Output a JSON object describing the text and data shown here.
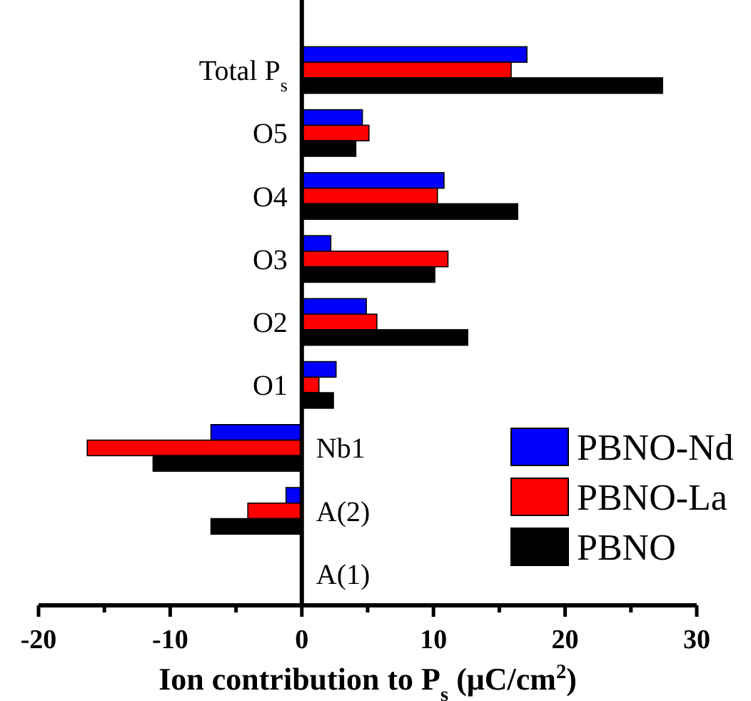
{
  "chart_data": {
    "type": "bar",
    "orientation": "horizontal",
    "xlabel": "Ion contribution to P$_{s}$ (μC/cm$^{2}$)",
    "categories": [
      "Total P$_{s}$",
      "O5",
      "O4",
      "O3",
      "O2",
      "O1",
      "Nb1",
      "A(2)",
      "A(1)"
    ],
    "series": [
      {
        "name": "PBNO-Nd",
        "color": "#0000ff",
        "values": [
          17.1,
          4.6,
          10.8,
          2.2,
          4.9,
          2.6,
          -6.9,
          -1.2,
          0
        ]
      },
      {
        "name": "PBNO-La",
        "color": "#ff0000",
        "values": [
          15.9,
          5.1,
          10.3,
          11.1,
          5.7,
          1.3,
          -16.3,
          -4.1,
          0
        ]
      },
      {
        "name": "PBNO",
        "color": "#000000",
        "values": [
          27.4,
          4.1,
          16.4,
          10.1,
          12.6,
          2.4,
          -11.3,
          -6.9,
          0
        ]
      }
    ],
    "xlim": [
      -20,
      30
    ],
    "xticks": [
      -20,
      {
        "value": -15,
        "label": null
      },
      -10,
      {
        "value": -5,
        "label": null
      },
      0,
      {
        "value": 5,
        "label": null
      },
      10,
      {
        "value": 15,
        "label": null
      },
      20,
      {
        "value": 25,
        "label": null
      },
      30
    ],
    "grid": false,
    "legend": "bottom right"
  }
}
